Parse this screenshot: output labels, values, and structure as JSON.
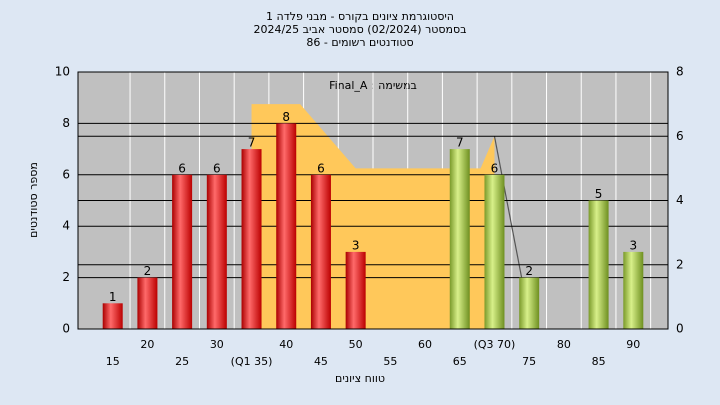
{
  "chart_data": {
    "type": "bar",
    "title_lines": [
      "היסטוגרמת ציונים בקורס - מבני פלדה 1",
      "בסמסטר  (02/2024)  סמסטר אביב 2024/25",
      "סטודנטים רשומים - 86"
    ],
    "annotation": "Final_A : במשימה",
    "x_label": "טווח ציונים",
    "y_label": "מספר סטודנטים",
    "x": [
      15,
      20,
      25,
      30,
      35,
      40,
      45,
      50,
      55,
      60,
      65,
      70,
      75,
      80,
      85,
      90
    ],
    "values": [
      1,
      2,
      6,
      6,
      7,
      8,
      6,
      3,
      null,
      null,
      7,
      6,
      2,
      null,
      5,
      3
    ],
    "colors": [
      "red",
      "red",
      "red",
      "red",
      "red",
      "red",
      "red",
      "red",
      "red",
      "green",
      "green",
      "green",
      "green",
      "green",
      "green",
      "green"
    ],
    "xlim": [
      10,
      95
    ],
    "xticks": [
      15,
      20,
      25,
      30,
      {
        "value": 35,
        "label": "(Q1 35)"
      },
      40,
      45,
      50,
      55,
      60,
      65,
      {
        "value": 70,
        "label": "(Q3 70)"
      },
      75,
      80,
      85,
      90
    ],
    "ylim": [
      0,
      10
    ],
    "yticks": [
      0,
      2,
      4,
      6,
      8,
      10
    ],
    "y2lim": [
      0,
      8
    ],
    "y2ticks": [
      0,
      2,
      4,
      6,
      8
    ],
    "grid": true,
    "series": [
      {
        "type": "area",
        "axis": "y2",
        "color": "#ffc85a",
        "x": [
          35,
          42,
          50,
          68,
          70
        ],
        "values": [
          7,
          7,
          5,
          5,
          6
        ]
      },
      {
        "type": "line",
        "axis": "y2",
        "color": "#555555",
        "x": [
          70,
          74
        ],
        "values": [
          6,
          1.5
        ]
      }
    ]
  }
}
